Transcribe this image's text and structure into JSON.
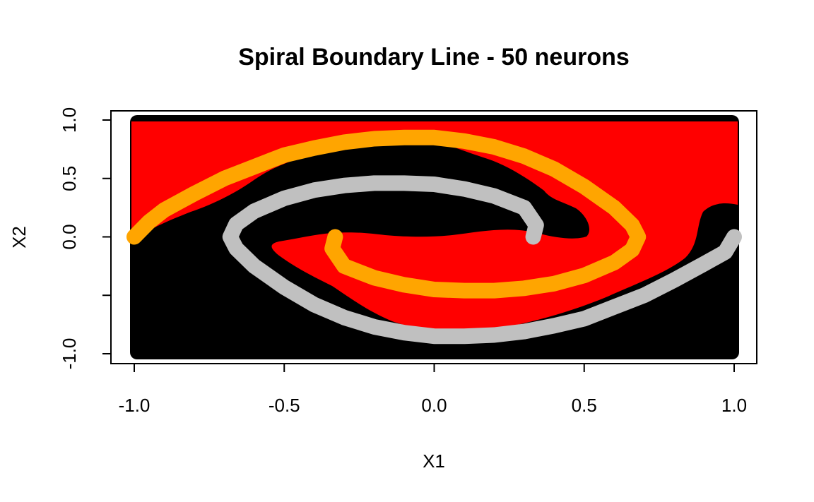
{
  "chart_data": {
    "type": "scatter",
    "title": "Spiral Boundary Line - 50 neurons",
    "xlabel": "X1",
    "ylabel": "X2",
    "xlim": [
      -1.0,
      1.0
    ],
    "ylim": [
      -1.0,
      1.0
    ],
    "x_ticks": [
      -1.0,
      -0.5,
      0.0,
      0.5,
      1.0
    ],
    "x_tick_labels": [
      "-1.0",
      "-0.5",
      "0.0",
      "0.5",
      "1.0"
    ],
    "y_ticks": [
      -1.0,
      -0.5,
      0.0,
      0.5,
      1.0
    ],
    "y_tick_labels": [
      "-1.0",
      "",
      "0.0",
      "0.5",
      "1.0"
    ],
    "grid": false,
    "legend": "none",
    "background_colors": {
      "red": "#ff0000",
      "black": "#000000"
    },
    "series": [
      {
        "color": "#ffa500",
        "x": [
          -1.0,
          -0.95,
          -0.9,
          -0.8,
          -0.7,
          -0.6,
          -0.5,
          -0.4,
          -0.3,
          -0.2,
          -0.1,
          0.0,
          0.1,
          0.2,
          0.3,
          0.4,
          0.5,
          0.6,
          0.66,
          0.68,
          0.66,
          0.6,
          0.5,
          0.4,
          0.3,
          0.2,
          0.1,
          0.0,
          -0.1,
          -0.2,
          -0.3,
          -0.34,
          -0.33
        ],
        "y": [
          0.0,
          0.13,
          0.23,
          0.37,
          0.5,
          0.6,
          0.7,
          0.76,
          0.81,
          0.84,
          0.85,
          0.85,
          0.82,
          0.77,
          0.69,
          0.58,
          0.43,
          0.25,
          0.1,
          0.0,
          -0.11,
          -0.22,
          -0.33,
          -0.4,
          -0.44,
          -0.46,
          -0.46,
          -0.45,
          -0.41,
          -0.35,
          -0.25,
          -0.1,
          0.0
        ]
      },
      {
        "color": "#c0c0c0",
        "x": [
          1.0,
          0.97,
          0.9,
          0.8,
          0.7,
          0.6,
          0.5,
          0.4,
          0.3,
          0.2,
          0.1,
          0.0,
          -0.1,
          -0.2,
          -0.3,
          -0.4,
          -0.5,
          -0.6,
          -0.66,
          -0.68,
          -0.66,
          -0.6,
          -0.5,
          -0.4,
          -0.3,
          -0.2,
          -0.1,
          0.0,
          0.1,
          0.2,
          0.3,
          0.34,
          0.33
        ],
        "y": [
          0.0,
          -0.13,
          -0.23,
          -0.37,
          -0.5,
          -0.6,
          -0.7,
          -0.76,
          -0.81,
          -0.84,
          -0.85,
          -0.85,
          -0.82,
          -0.77,
          -0.69,
          -0.58,
          -0.43,
          -0.25,
          -0.1,
          0.0,
          0.11,
          0.22,
          0.33,
          0.4,
          0.44,
          0.46,
          0.46,
          0.45,
          0.41,
          0.35,
          0.25,
          0.1,
          0.0
        ]
      }
    ]
  }
}
